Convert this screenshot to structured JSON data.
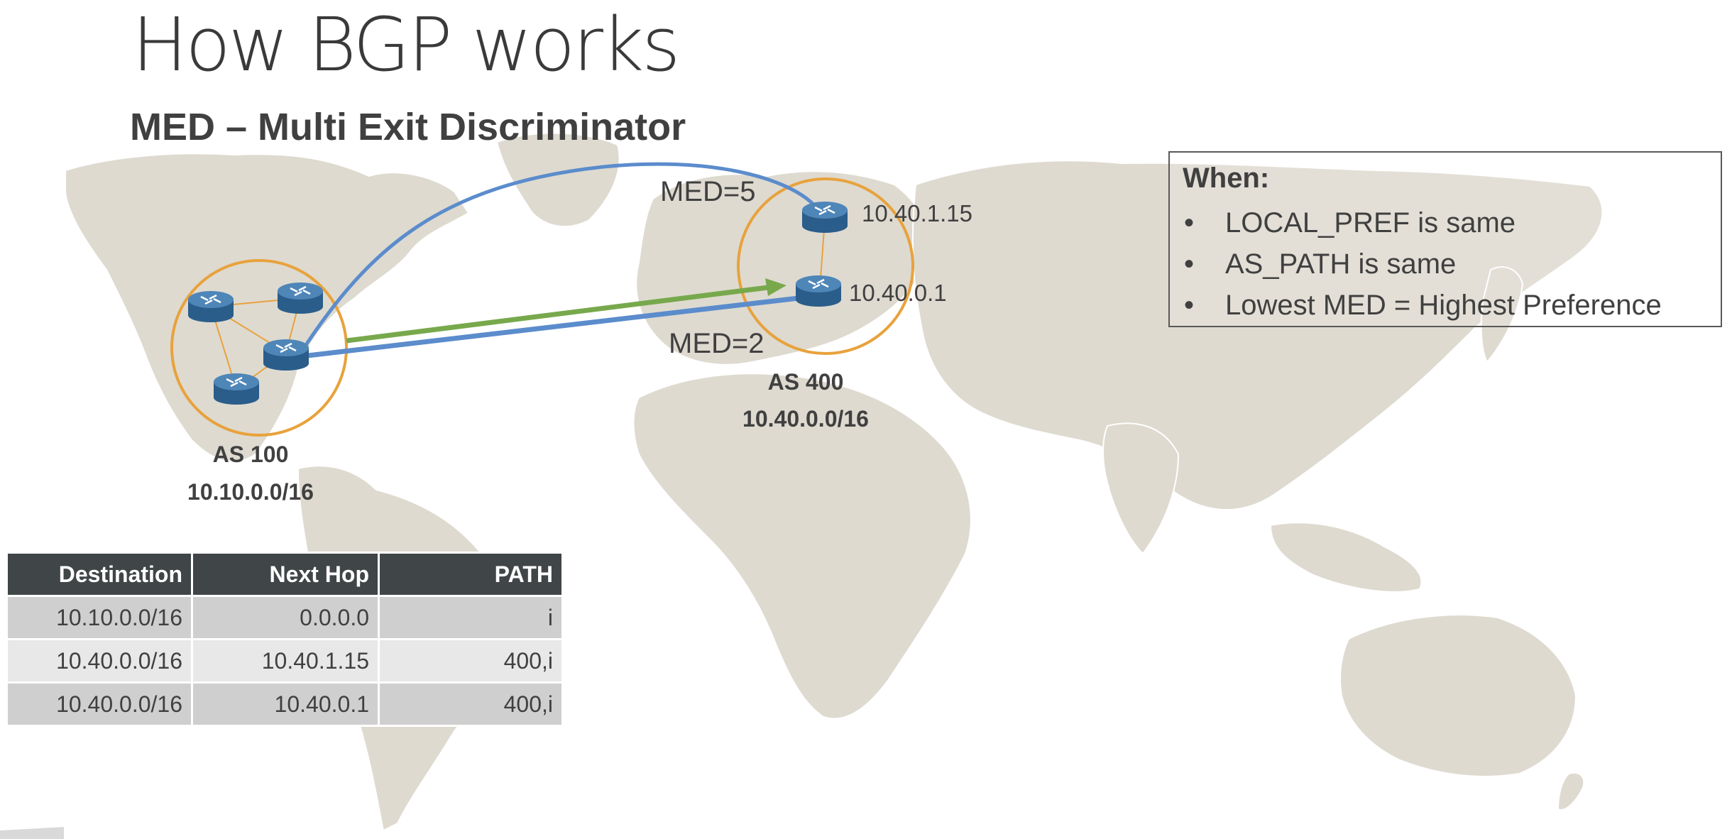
{
  "slide": {
    "title": "How BGP works",
    "subtitle": "MED – Multi Exit Discriminator"
  },
  "as100": {
    "name": "AS 100",
    "prefix": "10.10.0.0/16"
  },
  "as400": {
    "name": "AS 400",
    "prefix": "10.40.0.0/16",
    "router_top_ip": "10.40.1.15",
    "router_bottom_ip": "10.40.0.1"
  },
  "links": {
    "med_top": "MED=5",
    "med_bottom": "MED=2"
  },
  "when_box": {
    "title": "When:",
    "items": [
      "LOCAL_PREF is same",
      "AS_PATH is same",
      "Lowest MED = Highest Preference"
    ]
  },
  "routing_table": {
    "headers": [
      "Destination",
      "Next Hop",
      "PATH"
    ],
    "rows": [
      [
        "10.10.0.0/16",
        "0.0.0.0",
        "i"
      ],
      [
        "10.40.0.0/16",
        "10.40.1.15",
        "400,i"
      ],
      [
        "10.40.0.0/16",
        "10.40.0.1",
        "400,i"
      ]
    ]
  },
  "colors": {
    "as_circle": "#e8a23c",
    "med5_link": "#5b8ccc",
    "med2_link": "#5b8ccc",
    "preferred_path": "#77a94c",
    "map_land": "#dedad0",
    "table_header": "#404547"
  },
  "icons": [
    "router-icon",
    "world-map"
  ]
}
